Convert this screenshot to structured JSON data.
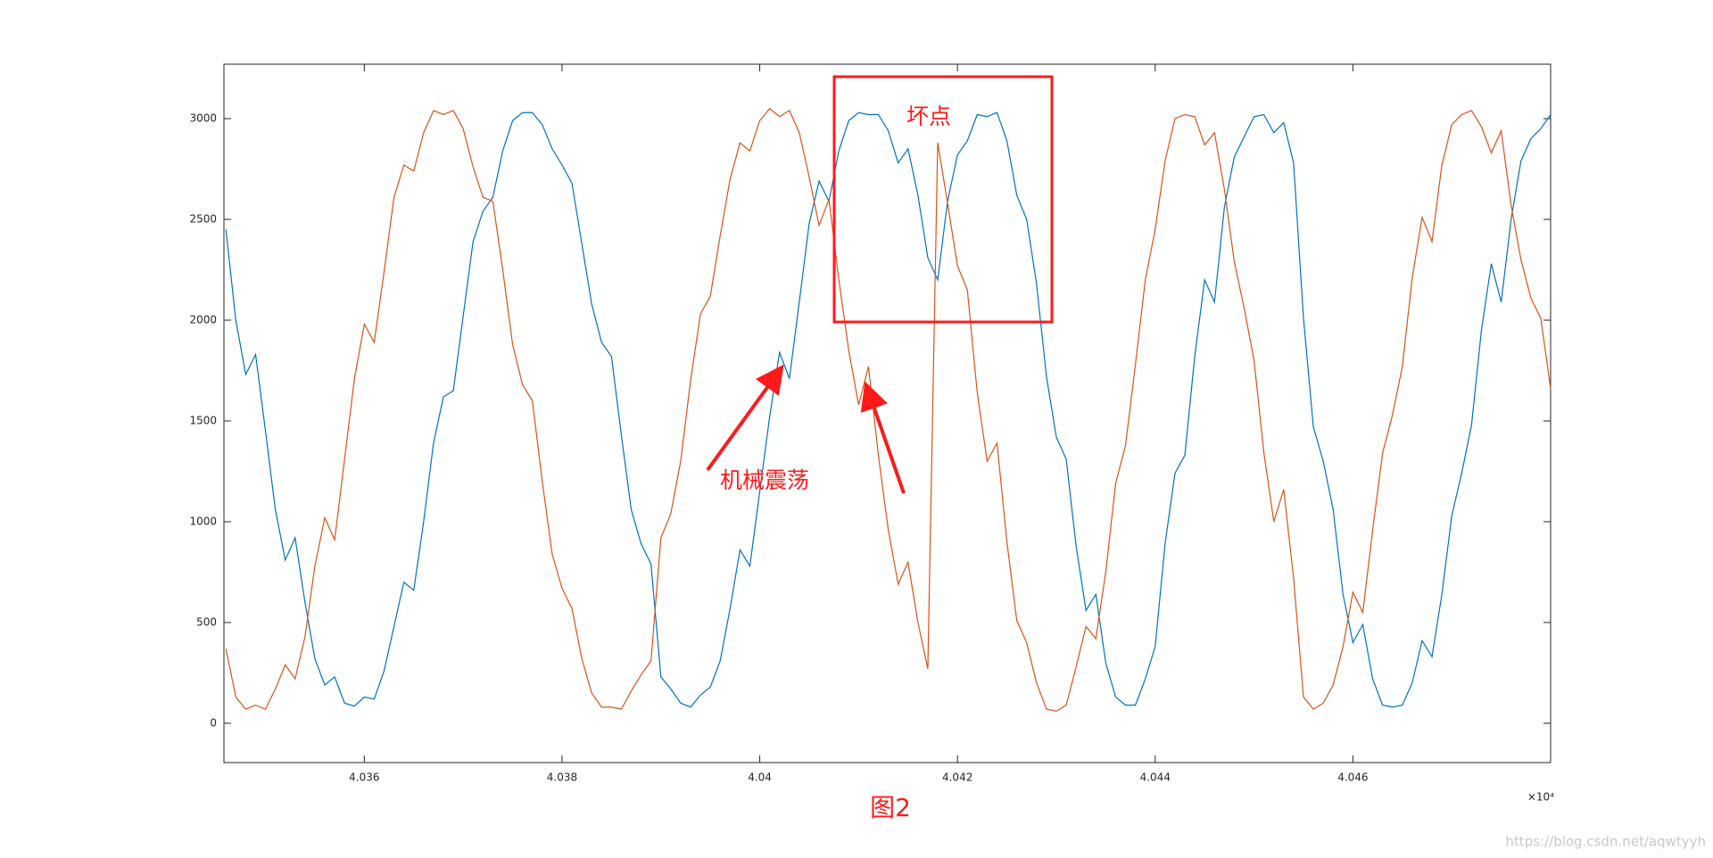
{
  "chart_data": {
    "type": "line",
    "x": [
      40346,
      40347,
      40348,
      40349,
      40350,
      40351,
      40352,
      40353,
      40354,
      40355,
      40356,
      40357,
      40358,
      40359,
      40360,
      40361,
      40362,
      40363,
      40364,
      40365,
      40366,
      40367,
      40368,
      40369,
      40370,
      40371,
      40372,
      40373,
      40374,
      40375,
      40376,
      40377,
      40378,
      40379,
      40380,
      40381,
      40382,
      40383,
      40384,
      40385,
      40386,
      40387,
      40388,
      40389,
      40390,
      40391,
      40392,
      40393,
      40394,
      40395,
      40396,
      40397,
      40398,
      40399,
      40400,
      40401,
      40402,
      40403,
      40404,
      40405,
      40406,
      40407,
      40408,
      40409,
      40410,
      40411,
      40412,
      40413,
      40414,
      40415,
      40416,
      40417,
      40418,
      40419,
      40420,
      40421,
      40422,
      40423,
      40424,
      40425,
      40426,
      40427,
      40428,
      40429,
      40430,
      40431,
      40432,
      40433,
      40434,
      40435,
      40436,
      40437,
      40438,
      40439,
      40440,
      40441,
      40442,
      40443,
      40444,
      40445,
      40446,
      40447,
      40448,
      40449,
      40450,
      40451,
      40452,
      40453,
      40454,
      40455,
      40456,
      40457,
      40458,
      40459,
      40460,
      40461,
      40462,
      40463,
      40464,
      40465,
      40466,
      40467,
      40468,
      40469,
      40470,
      40471,
      40472,
      40473,
      40474,
      40475,
      40476,
      40477,
      40478,
      40479,
      40480
    ],
    "series": [
      {
        "color": "#0072bd",
        "values": [
          2450,
          2000,
          1730,
          1830,
          1450,
          1060,
          810,
          920,
          600,
          320,
          190,
          230,
          100,
          85,
          130,
          120,
          260,
          480,
          700,
          660,
          1000,
          1390,
          1620,
          1650,
          2020,
          2390,
          2540,
          2610,
          2840,
          2990,
          3030,
          3030,
          2970,
          2850,
          2770,
          2680,
          2380,
          2080,
          1890,
          1820,
          1430,
          1060,
          890,
          790,
          230,
          170,
          100,
          80,
          140,
          180,
          310,
          570,
          860,
          780,
          1150,
          1520,
          1840,
          1710,
          2090,
          2480,
          2690,
          2590,
          2840,
          2990,
          3030,
          3020,
          3020,
          2940,
          2780,
          2850,
          2620,
          2310,
          2200,
          2590,
          2820,
          2890,
          3020,
          3010,
          3030,
          2890,
          2620,
          2500,
          2180,
          1720,
          1420,
          1310,
          880,
          560,
          640,
          300,
          130,
          90,
          90,
          220,
          380,
          890,
          1240,
          1330,
          1820,
          2200,
          2090,
          2560,
          2810,
          2910,
          3010,
          3020,
          2930,
          2980,
          2780,
          2010,
          1470,
          1300,
          1060,
          640,
          400,
          490,
          220,
          90,
          80,
          90,
          200,
          410,
          330,
          640,
          1030,
          1240,
          1480,
          1950,
          2280,
          2090,
          2500,
          2790,
          2900,
          2950,
          3020
        ]
      },
      {
        "color": "#d95319",
        "values": [
          370,
          130,
          70,
          90,
          70,
          170,
          290,
          220,
          430,
          780,
          1020,
          910,
          1310,
          1710,
          1980,
          1890,
          2240,
          2610,
          2770,
          2740,
          2930,
          3040,
          3020,
          3040,
          2950,
          2760,
          2610,
          2590,
          2250,
          1880,
          1680,
          1600,
          1200,
          840,
          670,
          570,
          320,
          150,
          80,
          80,
          70,
          160,
          240,
          310,
          920,
          1040,
          1300,
          1700,
          2030,
          2120,
          2420,
          2700,
          2880,
          2840,
          2990,
          3050,
          3010,
          3040,
          2930,
          2710,
          2470,
          2600,
          2200,
          1850,
          1580,
          1770,
          1330,
          960,
          690,
          800,
          500,
          270,
          2880,
          2580,
          2270,
          2150,
          1640,
          1300,
          1390,
          900,
          510,
          400,
          200,
          70,
          60,
          90,
          280,
          480,
          420,
          750,
          1190,
          1380,
          1780,
          2200,
          2450,
          2790,
          3000,
          3020,
          3010,
          2870,
          2930,
          2650,
          2290,
          2060,
          1800,
          1340,
          1000,
          1160,
          720,
          130,
          70,
          100,
          190,
          380,
          650,
          550,
          960,
          1340,
          1530,
          1770,
          2210,
          2510,
          2390,
          2770,
          2970,
          3020,
          3040,
          2960,
          2830,
          2940,
          2570,
          2300,
          2110,
          2010,
          1660
        ]
      }
    ],
    "xlim": [
      40345.8,
      40480
    ],
    "ylim": [
      -195,
      3270
    ],
    "xticks": [
      {
        "value": 40360,
        "label": "4.036"
      },
      {
        "value": 40380,
        "label": "4.038"
      },
      {
        "value": 40400,
        "label": "4.04"
      },
      {
        "value": 40420,
        "label": "4.042"
      },
      {
        "value": 40440,
        "label": "4.044"
      },
      {
        "value": 40460,
        "label": "4.046"
      }
    ],
    "yticks": [
      0,
      500,
      1000,
      1500,
      2000,
      2500,
      3000
    ],
    "x_multiplier": "×10⁴",
    "grid": false,
    "annotations": [
      "坏点",
      "机械震荡"
    ],
    "caption": "图2"
  },
  "watermark": "https://blog.csdn.net/aqwtyyh"
}
